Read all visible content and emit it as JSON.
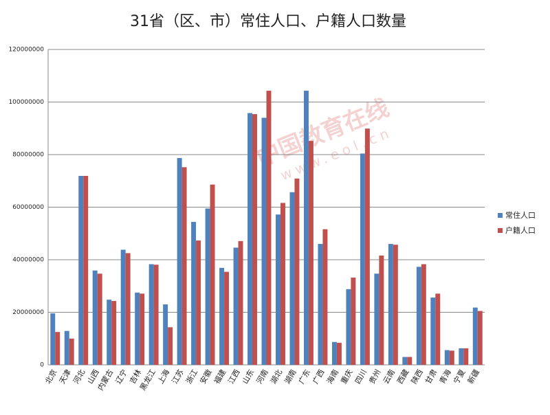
{
  "chart_data": {
    "type": "bar",
    "title": "31省（区、市）常住人口、户籍人口数量",
    "watermark": [
      "中国教育在线",
      "www.eol.cn"
    ],
    "categories": [
      "北京",
      "天津",
      "河北",
      "山西",
      "内蒙古",
      "辽宁",
      "吉林",
      "黑龙江",
      "上海",
      "江苏",
      "浙江",
      "安徽",
      "福建",
      "江西",
      "山东",
      "河南",
      "湖北",
      "湖南",
      "广东",
      "广西",
      "海南",
      "重庆",
      "四川",
      "贵州",
      "云南",
      "西藏",
      "陕西",
      "甘肃",
      "青海",
      "宁夏",
      "新疆"
    ],
    "series": [
      {
        "name": "常住人口",
        "color": "#4f81bd",
        "values": [
          19600000,
          12900000,
          71900000,
          35900000,
          24800000,
          43800000,
          27500000,
          38300000,
          23000000,
          78700000,
          54400000,
          59500000,
          36900000,
          44600000,
          95800000,
          94000000,
          57200000,
          65700000,
          104300000,
          46000000,
          8700000,
          28800000,
          80400000,
          34700000,
          46000000,
          3000000,
          37300000,
          25600000,
          5600000,
          6300000,
          21800000
        ]
      },
      {
        "name": "户籍人口",
        "color": "#c0504d",
        "values": [
          12500000,
          10000000,
          71900000,
          34700000,
          24300000,
          42500000,
          27100000,
          38100000,
          14300000,
          75200000,
          47300000,
          68600000,
          35400000,
          47100000,
          95400000,
          104300000,
          61600000,
          70900000,
          85200000,
          51600000,
          8400000,
          33200000,
          89900000,
          41600000,
          45700000,
          3000000,
          38300000,
          27100000,
          5400000,
          6300000,
          20500000
        ]
      }
    ],
    "ylim": [
      0,
      120000000
    ],
    "yticks": [
      0,
      20000000,
      40000000,
      60000000,
      80000000,
      100000000,
      120000000
    ],
    "grid": true,
    "legend": "right"
  }
}
